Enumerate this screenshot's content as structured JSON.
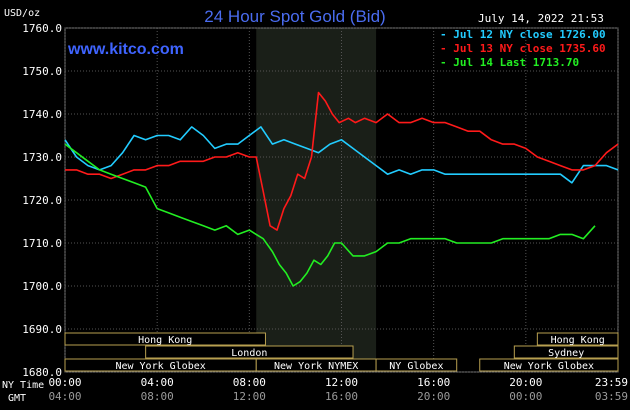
{
  "chart_data": {
    "type": "line",
    "title": "24 Hour Spot Gold (Bid)",
    "site": "www.kitco.com",
    "timestamp": "July 14, 2022 21:53",
    "ylabel": "USD/oz",
    "ylim": [
      1680,
      1760
    ],
    "yticks": [
      "1760.0",
      "1750.0",
      "1740.0",
      "1730.0",
      "1720.0",
      "1710.0",
      "1700.0",
      "1690.0",
      "1680.0"
    ],
    "yvals": [
      1760,
      1750,
      1740,
      1730,
      1720,
      1710,
      1700,
      1690,
      1680
    ],
    "xlim": [
      0,
      24
    ],
    "ny_label": "NY Time",
    "gmt_label": "GMT",
    "ny_ticks": [
      "00:00",
      "04:00",
      "08:00",
      "12:00",
      "16:00",
      "20:00",
      "23:59"
    ],
    "gmt_ticks": [
      "04:00",
      "08:00",
      "12:00",
      "16:00",
      "20:00",
      "00:00",
      "03:59"
    ],
    "tick_hours": [
      0,
      4,
      8,
      12,
      16,
      20,
      24
    ],
    "highlight_hours": [
      8.3,
      13.5
    ],
    "colors": {
      "jul12": "#22ccff",
      "jul13": "#ff1a1a",
      "jul14": "#22ee22",
      "grid": "#555555"
    },
    "series": [
      {
        "name": "Jul 12 NY close 1726.00",
        "color": "#22ccff",
        "x": [
          0,
          0.5,
          1,
          1.5,
          2,
          2.5,
          3,
          3.5,
          4,
          4.5,
          5,
          5.5,
          6,
          6.5,
          7,
          7.5,
          8,
          8.5,
          9,
          9.5,
          10,
          10.5,
          11,
          11.5,
          12,
          12.5,
          13,
          13.5,
          14,
          14.5,
          15,
          15.5,
          16,
          16.5,
          17,
          17.5,
          18,
          18.5,
          19,
          19.5,
          20,
          20.5,
          21,
          21.5,
          22,
          22.5,
          23,
          23.5,
          24
        ],
        "y": [
          1734,
          1730,
          1728,
          1727,
          1728,
          1731,
          1735,
          1734,
          1735,
          1735,
          1734,
          1737,
          1735,
          1732,
          1733,
          1733,
          1735,
          1737,
          1733,
          1734,
          1733,
          1732,
          1731,
          1733,
          1734,
          1732,
          1730,
          1728,
          1726,
          1727,
          1726,
          1727,
          1727,
          1726,
          1726,
          1726,
          1726,
          1726,
          1726,
          1726,
          1726,
          1726,
          1726,
          1726,
          1724,
          1728,
          1728,
          1728,
          1727
        ]
      },
      {
        "name": "Jul 13 NY close 1735.60",
        "color": "#ff1a1a",
        "x": [
          0,
          0.5,
          1,
          1.5,
          2,
          2.5,
          3,
          3.5,
          4,
          4.5,
          5,
          5.5,
          6,
          6.5,
          7,
          7.5,
          8,
          8.3,
          8.6,
          8.9,
          9.2,
          9.5,
          9.8,
          10.1,
          10.4,
          10.7,
          11,
          11.3,
          11.6,
          11.9,
          12.3,
          12.6,
          13,
          13.5,
          14,
          14.5,
          15,
          15.5,
          16,
          16.5,
          17,
          17.5,
          18,
          18.5,
          19,
          19.5,
          20,
          20.5,
          21,
          21.5,
          22,
          22.5,
          23,
          23.5,
          24
        ],
        "y": [
          1727,
          1727,
          1726,
          1726,
          1725,
          1726,
          1727,
          1727,
          1728,
          1728,
          1729,
          1729,
          1729,
          1730,
          1730,
          1731,
          1730,
          1730,
          1722,
          1714,
          1713,
          1718,
          1721,
          1726,
          1725,
          1730,
          1745,
          1743,
          1740,
          1738,
          1739,
          1738,
          1739,
          1738,
          1740,
          1738,
          1738,
          1739,
          1738,
          1738,
          1737,
          1736,
          1736,
          1734,
          1733,
          1733,
          1732,
          1730,
          1729,
          1728,
          1727,
          1727,
          1728,
          1731,
          1733
        ]
      },
      {
        "name": "Jul 14 Last 1713.70",
        "color": "#22ee22",
        "x": [
          0,
          0.5,
          1,
          1.5,
          2,
          2.5,
          3,
          3.5,
          4,
          4.5,
          5,
          5.5,
          6,
          6.5,
          7,
          7.5,
          8,
          8.3,
          8.6,
          9,
          9.3,
          9.6,
          9.9,
          10.2,
          10.5,
          10.8,
          11.1,
          11.4,
          11.7,
          12,
          12.5,
          13,
          13.5,
          14,
          14.5,
          15,
          15.5,
          16,
          16.5,
          17,
          17.5,
          18,
          18.5,
          19,
          19.5,
          20,
          20.5,
          21,
          21.5,
          22,
          22.5,
          23
        ],
        "y": [
          1733,
          1731,
          1729,
          1727,
          1726,
          1725,
          1724,
          1723,
          1718,
          1717,
          1716,
          1715,
          1714,
          1713,
          1714,
          1712,
          1713,
          1712,
          1711,
          1708,
          1705,
          1703,
          1700,
          1701,
          1703,
          1706,
          1705,
          1707,
          1710,
          1710,
          1707,
          1707,
          1708,
          1710,
          1710,
          1711,
          1711,
          1711,
          1711,
          1710,
          1710,
          1710,
          1710,
          1711,
          1711,
          1711,
          1711,
          1711,
          1712,
          1712,
          1711,
          1714
        ]
      }
    ],
    "markets": [
      {
        "name": "Hong Kong",
        "row": 0,
        "start": 0,
        "end": 8.7
      },
      {
        "name": "Hong Kong",
        "row": 0,
        "start": 20.5,
        "end": 24
      },
      {
        "name": "London",
        "row": 1,
        "start": 3.5,
        "end": 12.5
      },
      {
        "name": "Sydney",
        "row": 1,
        "start": 19.5,
        "end": 24
      },
      {
        "name": "New York Globex",
        "row": 2,
        "start": 0,
        "end": 8.3
      },
      {
        "name": "New York NYMEX",
        "row": 2,
        "start": 8.3,
        "end": 13.5
      },
      {
        "name": "NY Globex",
        "row": 2,
        "start": 13.5,
        "end": 17
      },
      {
        "name": "New York Globex",
        "row": 2,
        "start": 18,
        "end": 24
      }
    ]
  }
}
